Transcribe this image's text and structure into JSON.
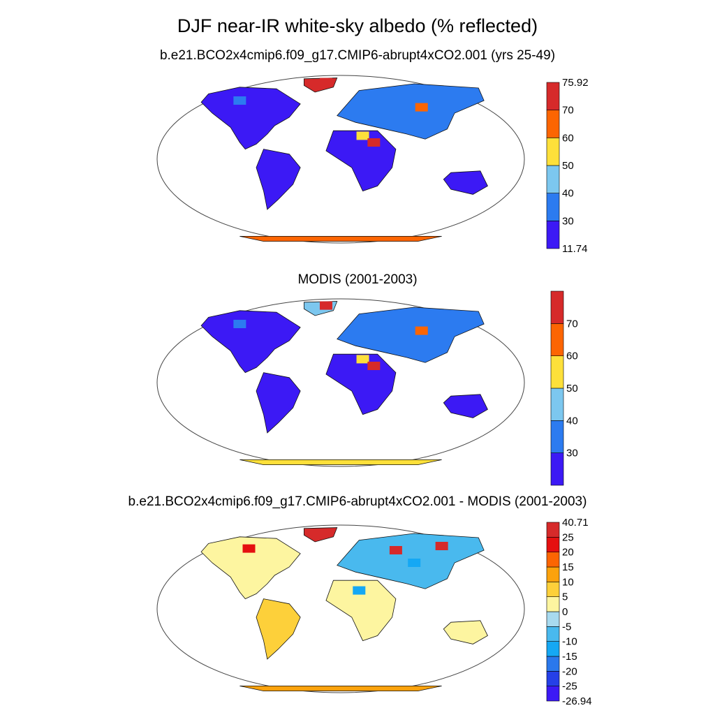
{
  "title": "DJF near-IR white-sky albedo (% reflected)",
  "panels": [
    {
      "title": "b.e21.BCO2x4cmip6.f09_g17.CMIP6-abrupt4xCO2.001 (yrs 25-49)",
      "colorbar": {
        "colors": [
          "#3c19f5",
          "#2c7bf0",
          "#7cc7ef",
          "#fde03a",
          "#fc6502",
          "#d62a2a"
        ],
        "labels": [
          "11.74",
          "30",
          "40",
          "50",
          "60",
          "70",
          "75.92"
        ]
      }
    },
    {
      "title": "MODIS (2001-2003)",
      "colorbar": {
        "colors": [
          "#3c19f5",
          "#2c7bf0",
          "#7cc7ef",
          "#fde03a",
          "#fc6502",
          "#d62a2a"
        ],
        "labels": [
          "",
          "30",
          "40",
          "50",
          "60",
          "70",
          ""
        ]
      }
    },
    {
      "title": "b.e21.BCO2x4cmip6.f09_g17.CMIP6-abrupt4xCO2.001 - MODIS (2001-2003)",
      "colorbar": {
        "colors": [
          "#3c19f5",
          "#2540e8",
          "#2a78ec",
          "#15a8f4",
          "#49b9ee",
          "#a8daef",
          "#fdf5a0",
          "#fdd03a",
          "#fca20c",
          "#fc6502",
          "#e51010",
          "#d62a2a"
        ],
        "labels": [
          "-26.94",
          "-25",
          "-20",
          "-15",
          "-10",
          "-5",
          "0",
          "5",
          "10",
          "15",
          "20",
          "25",
          "40.71"
        ]
      }
    }
  ]
}
